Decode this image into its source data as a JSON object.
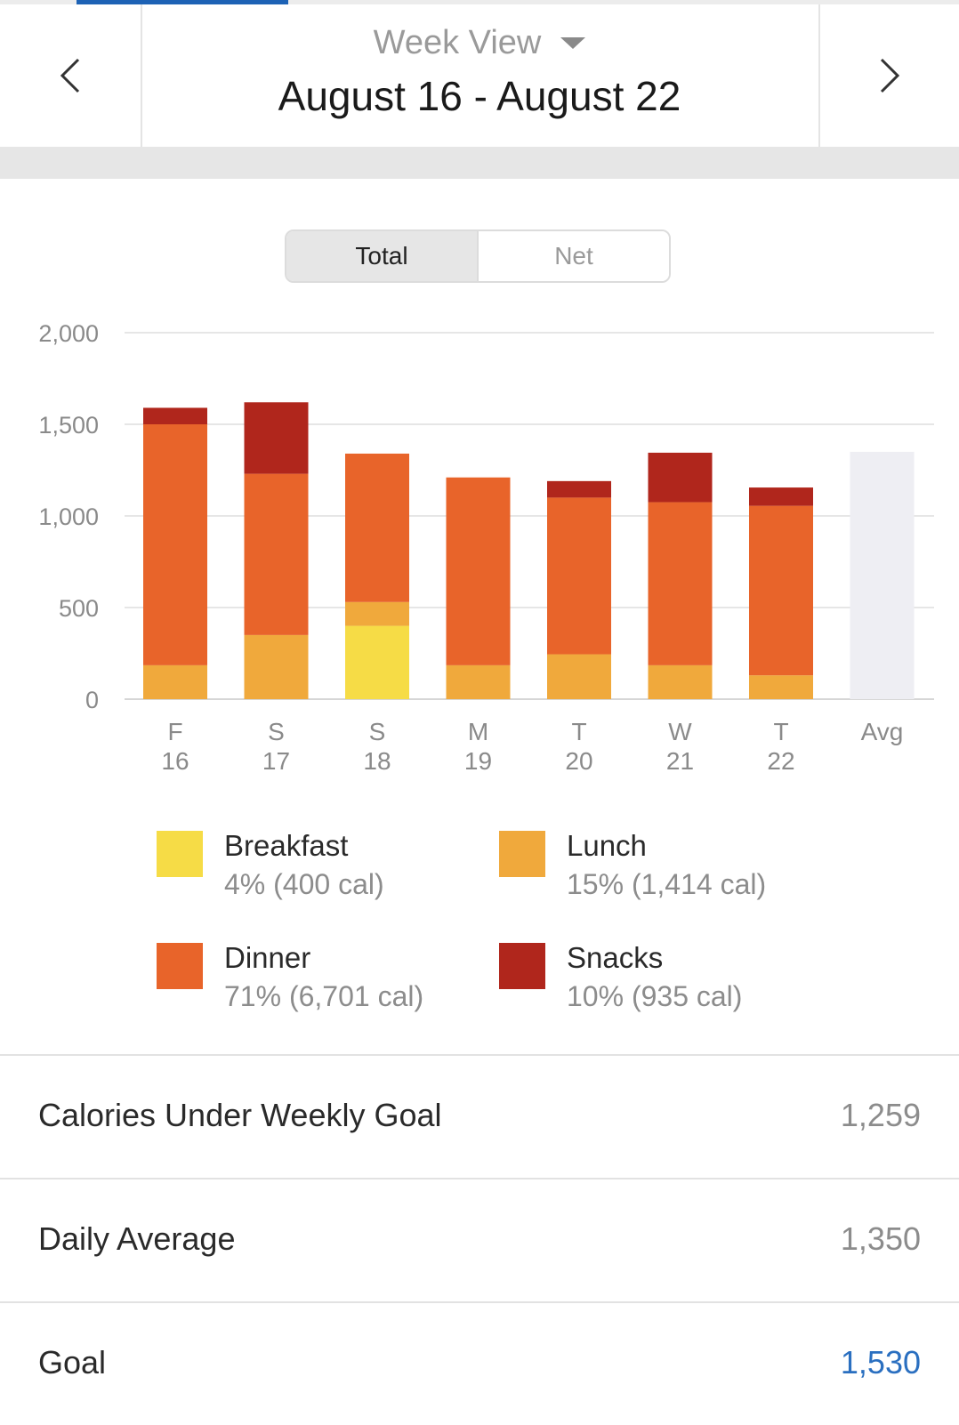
{
  "header": {
    "view_label": "Week View",
    "date_range": "August 16 - August 22"
  },
  "toggle": {
    "options": [
      "Total",
      "Net"
    ],
    "selected": "Total"
  },
  "chart_data": {
    "type": "bar",
    "stacked": true,
    "categories": [
      "F\n16",
      "S\n17",
      "S\n18",
      "M\n19",
      "T\n20",
      "W\n21",
      "T\n22",
      "Avg"
    ],
    "day_letters": [
      "F",
      "S",
      "S",
      "M",
      "T",
      "W",
      "T",
      "Avg"
    ],
    "day_numbers": [
      "16",
      "17",
      "18",
      "19",
      "20",
      "21",
      "22",
      ""
    ],
    "ylim": [
      0,
      2000
    ],
    "yticks": [
      0,
      500,
      1000,
      1500,
      2000
    ],
    "ytick_labels": [
      "0",
      "500",
      "1,000",
      "1,500",
      "2,000"
    ],
    "grid": true,
    "series": [
      {
        "name": "Breakfast",
        "color": "#f6dc46",
        "values": [
          0,
          0,
          400,
          0,
          0,
          0,
          0,
          0
        ]
      },
      {
        "name": "Lunch",
        "color": "#f0a93c",
        "values": [
          185,
          350,
          130,
          185,
          245,
          185,
          130,
          0
        ]
      },
      {
        "name": "Dinner",
        "color": "#e8642a",
        "values": [
          1315,
          880,
          810,
          1025,
          855,
          890,
          925,
          0
        ]
      },
      {
        "name": "Snacks",
        "color": "#b0261c",
        "values": [
          90,
          390,
          0,
          0,
          90,
          270,
          100,
          0
        ]
      }
    ],
    "average": {
      "label": "Avg",
      "value": 1350,
      "color": "#eeeef3"
    }
  },
  "legend": [
    {
      "name": "Breakfast",
      "detail": "4% (400 cal)",
      "color": "#f6dc46"
    },
    {
      "name": "Lunch",
      "detail": "15% (1,414 cal)",
      "color": "#f0a93c"
    },
    {
      "name": "Dinner",
      "detail": "71% (6,701 cal)",
      "color": "#e8642a"
    },
    {
      "name": "Snacks",
      "detail": "10% (935 cal)",
      "color": "#b0261c"
    }
  ],
  "stats": [
    {
      "label": "Calories Under Weekly Goal",
      "value": "1,259"
    },
    {
      "label": "Daily Average",
      "value": "1,350"
    },
    {
      "label": "Goal",
      "value": "1,530"
    }
  ],
  "colors": {
    "accent": "#1d62b5",
    "link": "#2a6fc0"
  },
  "icons": {
    "prev": "chevron-left-icon",
    "next": "chevron-right-icon",
    "dropdown": "caret-down-icon"
  }
}
